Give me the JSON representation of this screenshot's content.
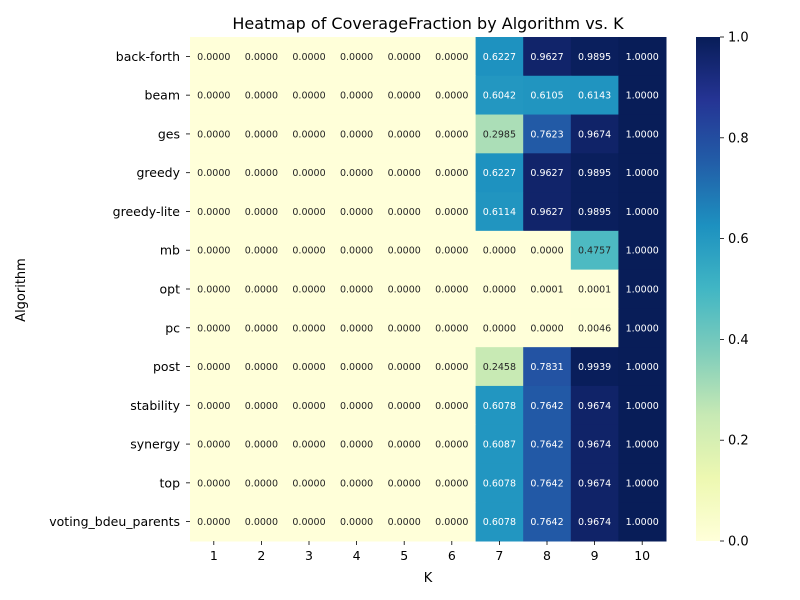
{
  "chart_data": {
    "type": "heatmap",
    "title": "Heatmap of CoverageFraction by Algorithm vs. K",
    "xlabel": "K",
    "ylabel": "Algorithm",
    "x_categories": [
      "1",
      "2",
      "3",
      "4",
      "5",
      "6",
      "7",
      "8",
      "9",
      "10"
    ],
    "y_categories": [
      "back-forth",
      "beam",
      "ges",
      "greedy",
      "greedy-lite",
      "mb",
      "opt",
      "pc",
      "post",
      "stability",
      "synergy",
      "top",
      "voting_bdeu_parents"
    ],
    "values": [
      [
        0,
        0,
        0,
        0,
        0,
        0,
        0.6227,
        0.9627,
        0.9895,
        1.0
      ],
      [
        0,
        0,
        0,
        0,
        0,
        0,
        0.6042,
        0.6105,
        0.6143,
        1.0
      ],
      [
        0,
        0,
        0,
        0,
        0,
        0,
        0.2985,
        0.7623,
        0.9674,
        1.0
      ],
      [
        0,
        0,
        0,
        0,
        0,
        0,
        0.6227,
        0.9627,
        0.9895,
        1.0
      ],
      [
        0,
        0,
        0,
        0,
        0,
        0,
        0.6114,
        0.9627,
        0.9895,
        1.0
      ],
      [
        0,
        0,
        0,
        0,
        0,
        0,
        0.0,
        0.0,
        0.4757,
        1.0
      ],
      [
        0,
        0,
        0,
        0,
        0,
        0,
        0.0,
        0.0001,
        0.0001,
        1.0
      ],
      [
        0,
        0,
        0,
        0,
        0,
        0,
        0.0,
        0.0,
        0.0046,
        1.0
      ],
      [
        0,
        0,
        0,
        0,
        0,
        0,
        0.2458,
        0.7831,
        0.9939,
        1.0
      ],
      [
        0,
        0,
        0,
        0,
        0,
        0,
        0.6078,
        0.7642,
        0.9674,
        1.0
      ],
      [
        0,
        0,
        0,
        0,
        0,
        0,
        0.6087,
        0.7642,
        0.9674,
        1.0
      ],
      [
        0,
        0,
        0,
        0,
        0,
        0,
        0.6078,
        0.7642,
        0.9674,
        1.0
      ],
      [
        0,
        0,
        0,
        0,
        0,
        0,
        0.6078,
        0.7642,
        0.9674,
        1.0
      ]
    ],
    "value_format": "0.0000",
    "colormap": "YlGnBu",
    "colormap_stops": [
      "#ffffd9",
      "#edf8b1",
      "#c7e9b4",
      "#7fcdbb",
      "#41b6c4",
      "#1d91c0",
      "#225ea8",
      "#253494",
      "#081d58"
    ],
    "vmin": 0.0,
    "vmax": 1.0,
    "colorbar_ticks": [
      "0.0",
      "0.2",
      "0.4",
      "0.6",
      "0.8",
      "1.0"
    ],
    "colorbar": true,
    "grid": false
  }
}
